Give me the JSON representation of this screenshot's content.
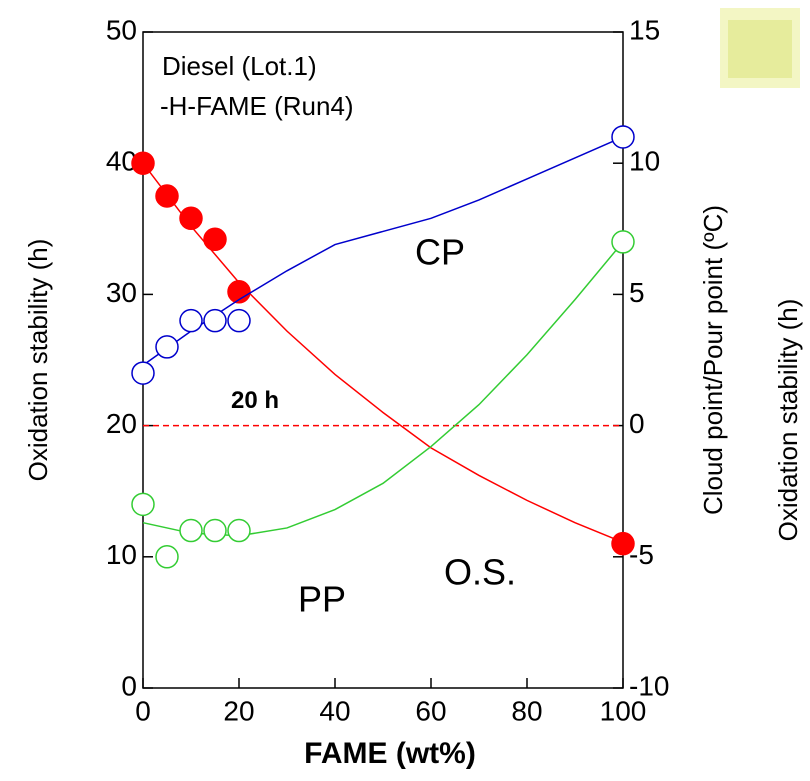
{
  "chart_data": {
    "type": "line",
    "x_label": "FAME (wt%)",
    "y_label": "Oxidation stability (h)",
    "y2_label": "Cloud point/Pour point (ºC)",
    "side_label": "Oxidation stability (h)",
    "annotations": [
      "Diesel (Lot.1)",
      "-H-FAME (Run4)"
    ],
    "xlim": [
      0,
      100
    ],
    "xticks": [
      0,
      20,
      40,
      60,
      80,
      100
    ],
    "ylim": [
      0,
      50
    ],
    "yticks": [
      0,
      10,
      20,
      30,
      40,
      50
    ],
    "y2lim": [
      -10,
      15
    ],
    "y2ticks": [
      -10,
      -5,
      0,
      5,
      10,
      15
    ],
    "reference": {
      "value": 20,
      "label": "20 h",
      "color": "#ff0000"
    },
    "x": [
      0,
      5,
      10,
      15,
      20,
      100
    ],
    "fit_x": [
      0,
      10,
      20,
      30,
      40,
      50,
      60,
      70,
      80,
      90,
      100
    ],
    "series": [
      {
        "name": "O.S.",
        "color": "#ff0000",
        "filled": true,
        "values": [
          40,
          37.5,
          35.8,
          34.2,
          30.2,
          11
        ],
        "fit_values": [
          40,
          35.2,
          30.9,
          27.2,
          23.9,
          21,
          18.3,
          16.2,
          14.3,
          12.6,
          11.1
        ]
      },
      {
        "name": "CP",
        "color": "#0000cc",
        "filled": false,
        "axis": "y2",
        "values": [
          2,
          3,
          4,
          4,
          4,
          11
        ],
        "fit_values": [
          2.3,
          3.6,
          4.8,
          5.9,
          6.9,
          7.4,
          7.9,
          8.6,
          9.4,
          10.2,
          11
        ]
      },
      {
        "name": "PP",
        "color": "#33cc33",
        "filled": false,
        "axis": "y2",
        "values": [
          -3,
          -5,
          -4,
          -4,
          -4,
          7
        ],
        "fit_values": [
          -3.7,
          -4.1,
          -4.2,
          -3.9,
          -3.2,
          -2.2,
          -0.8,
          0.8,
          2.7,
          4.8,
          7
        ]
      }
    ]
  }
}
